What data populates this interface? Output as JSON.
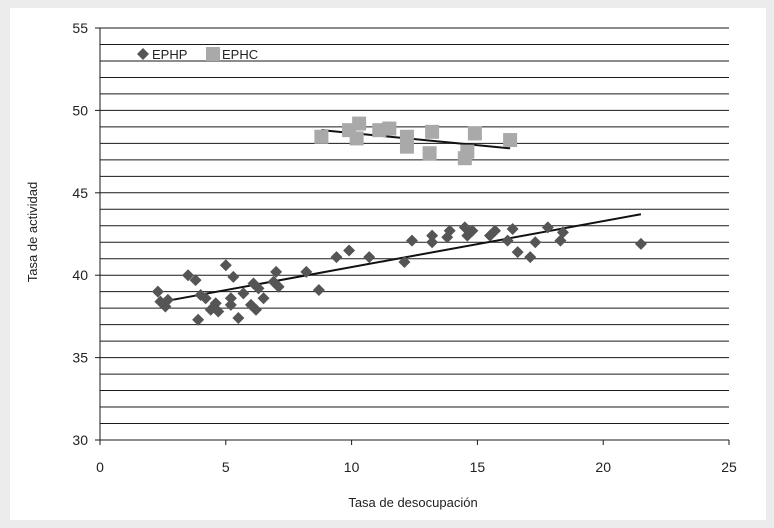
{
  "chart_data": {
    "type": "scatter",
    "xlabel": "Tasa de desocupación",
    "ylabel": "Tasa de actividad",
    "xlim": [
      0,
      25
    ],
    "ylim": [
      30,
      55
    ],
    "x_ticks": [
      "0",
      "5",
      "10",
      "15",
      "20",
      "25"
    ],
    "y_ticks": [
      "30",
      "35",
      "40",
      "45",
      "50",
      "55"
    ],
    "minor_grid_step": 1,
    "grid": true,
    "legend_position": "top-left",
    "series": [
      {
        "name": "EPHP",
        "marker": "diamond",
        "color": "#555555",
        "points": [
          [
            2.3,
            39.0
          ],
          [
            2.4,
            38.4
          ],
          [
            2.6,
            38.1
          ],
          [
            2.7,
            38.5
          ],
          [
            3.5,
            40.0
          ],
          [
            3.8,
            39.7
          ],
          [
            3.9,
            37.3
          ],
          [
            4.0,
            38.8
          ],
          [
            4.2,
            38.6
          ],
          [
            4.4,
            37.9
          ],
          [
            4.6,
            38.3
          ],
          [
            4.7,
            37.8
          ],
          [
            5.0,
            40.6
          ],
          [
            5.2,
            38.6
          ],
          [
            5.2,
            38.2
          ],
          [
            5.3,
            39.9
          ],
          [
            5.5,
            37.4
          ],
          [
            5.7,
            38.9
          ],
          [
            6.0,
            38.2
          ],
          [
            6.1,
            39.5
          ],
          [
            6.2,
            37.9
          ],
          [
            6.3,
            39.2
          ],
          [
            6.5,
            38.6
          ],
          [
            6.9,
            39.6
          ],
          [
            7.0,
            40.2
          ],
          [
            7.1,
            39.3
          ],
          [
            8.2,
            40.2
          ],
          [
            8.7,
            39.1
          ],
          [
            9.4,
            41.1
          ],
          [
            9.9,
            41.5
          ],
          [
            10.7,
            41.1
          ],
          [
            12.1,
            40.8
          ],
          [
            12.4,
            42.1
          ],
          [
            13.2,
            42.0
          ],
          [
            13.2,
            42.4
          ],
          [
            13.8,
            42.3
          ],
          [
            13.9,
            42.7
          ],
          [
            14.5,
            42.9
          ],
          [
            14.6,
            42.4
          ],
          [
            14.8,
            42.7
          ],
          [
            15.5,
            42.4
          ],
          [
            15.7,
            42.7
          ],
          [
            16.2,
            42.1
          ],
          [
            16.4,
            42.8
          ],
          [
            16.6,
            41.4
          ],
          [
            17.1,
            41.1
          ],
          [
            17.3,
            42.0
          ],
          [
            17.8,
            42.9
          ],
          [
            18.3,
            42.1
          ],
          [
            18.4,
            42.6
          ],
          [
            21.5,
            41.9
          ]
        ],
        "trendline": [
          [
            2.5,
            38.4
          ],
          [
            21.5,
            43.7
          ]
        ]
      },
      {
        "name": "EPHC",
        "marker": "square",
        "color": "#a9a9a9",
        "points": [
          [
            8.8,
            48.4
          ],
          [
            9.9,
            48.8
          ],
          [
            10.2,
            48.3
          ],
          [
            10.3,
            49.2
          ],
          [
            11.1,
            48.8
          ],
          [
            11.5,
            48.9
          ],
          [
            12.2,
            48.4
          ],
          [
            12.2,
            47.8
          ],
          [
            13.1,
            47.4
          ],
          [
            13.2,
            48.7
          ],
          [
            14.5,
            47.1
          ],
          [
            14.6,
            47.5
          ],
          [
            14.9,
            48.6
          ],
          [
            16.3,
            48.2
          ]
        ],
        "trendline": [
          [
            8.8,
            48.8
          ],
          [
            16.3,
            47.7
          ]
        ]
      }
    ]
  }
}
